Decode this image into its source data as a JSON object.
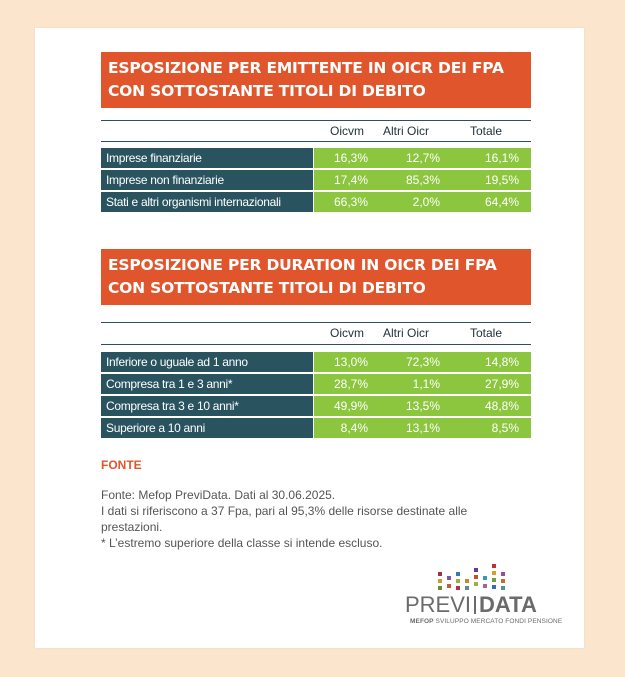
{
  "colors": {
    "background": "#fbe6cd",
    "banner": "#e0552b",
    "label_cell": "#2a5360",
    "value_cell": "#8cc63e"
  },
  "table1": {
    "title_line1": "ESPOSIZIONE PER EMITTENTE IN OICR DEI FPA",
    "title_line2": "CON SOTTOSTANTE TITOLI DI DEBITO",
    "columns": [
      "Oicvm",
      "Altri Oicr",
      "Totale"
    ],
    "rows": [
      {
        "label": "Imprese finanziarie",
        "oicvm": "16,3%",
        "altri": "12,7%",
        "totale": "16,1%"
      },
      {
        "label": "Imprese non  finanziarie",
        "oicvm": "17,4%",
        "altri": "85,3%",
        "totale": "19,5%"
      },
      {
        "label": "Stati e altri organismi internazionali",
        "oicvm": "66,3%",
        "altri": "2,0%",
        "totale": "64,4%"
      }
    ]
  },
  "table2": {
    "title_line1": "ESPOSIZIONE PER DURATION IN OICR DEI FPA",
    "title_line2": "CON SOTTOSTANTE TITOLI DI DEBITO",
    "columns": [
      "Oicvm",
      "Altri Oicr",
      "Totale"
    ],
    "rows": [
      {
        "label": "Inferiore o uguale ad 1 anno",
        "oicvm": "13,0%",
        "altri": "72,3%",
        "totale": "14,8%"
      },
      {
        "label": "Compresa tra 1 e 3 anni*",
        "oicvm": "28,7%",
        "altri": "1,1%",
        "totale": "27,9%"
      },
      {
        "label": "Compresa tra 3 e 10 anni*",
        "oicvm": "49,9%",
        "altri": "13,5%",
        "totale": "48,8%"
      },
      {
        "label": "Superiore a 10 anni",
        "oicvm": "8,4%",
        "altri": "13,1%",
        "totale": "8,5%"
      }
    ]
  },
  "fonte": {
    "title": "FONTE",
    "line1": "Fonte: Mefop PreviData. Dati al 30.06.2025.",
    "line2": "I dati si riferiscono a 37 Fpa, pari al 95,3% delle risorse destinate alle",
    "line3": "prestazioni.",
    "line4": "* L’estremo superiore della classe si intende escluso."
  },
  "logo": {
    "brand_left": "PREVI",
    "brand_right": "DATA",
    "sub_bold": "MEFOP",
    "sub_rest": "SVILUPPO MERCATO FONDI PENSIONE"
  }
}
